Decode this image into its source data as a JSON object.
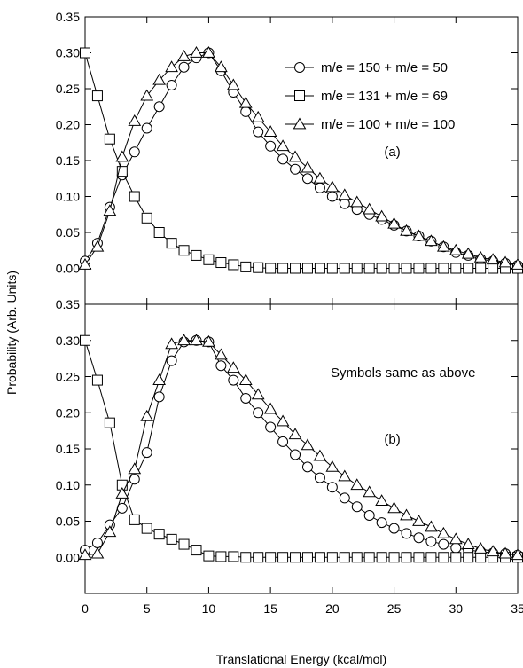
{
  "figure": {
    "ylabel": "Probability (Arb. Units)",
    "xlabel": "Translational Energy (kcal/mol)"
  },
  "chart_data": [
    {
      "type": "line",
      "panel_label": "(a)",
      "xlim": [
        0,
        35
      ],
      "ylim": [
        -0.05,
        0.35
      ],
      "x_ticks": [
        "0",
        "5",
        "10",
        "15",
        "20",
        "25",
        "30",
        "35"
      ],
      "y_ticks": [
        "0.00",
        "0.05",
        "0.10",
        "0.15",
        "0.20",
        "0.25",
        "0.30",
        "0.35"
      ],
      "x": [
        0,
        1,
        2,
        3,
        4,
        5,
        6,
        7,
        8,
        9,
        10,
        11,
        12,
        13,
        14,
        15,
        16,
        17,
        18,
        19,
        20,
        21,
        22,
        23,
        24,
        25,
        26,
        27,
        28,
        29,
        30,
        31,
        32,
        33,
        34,
        35
      ],
      "series": [
        {
          "name": "m/e = 150 + m/e = 50",
          "marker": "circle",
          "values": [
            0.01,
            0.035,
            0.085,
            0.13,
            0.162,
            0.195,
            0.225,
            0.255,
            0.28,
            0.293,
            0.3,
            0.275,
            0.245,
            0.218,
            0.19,
            0.17,
            0.152,
            0.138,
            0.125,
            0.112,
            0.1,
            0.09,
            0.082,
            0.075,
            0.068,
            0.06,
            0.052,
            0.045,
            0.038,
            0.03,
            0.022,
            0.018,
            0.013,
            0.01,
            0.007,
            0.004
          ]
        },
        {
          "name": "m/e = 131 + m/e = 69",
          "marker": "square",
          "values": [
            0.3,
            0.24,
            0.18,
            0.135,
            0.1,
            0.07,
            0.05,
            0.035,
            0.025,
            0.018,
            0.012,
            0.008,
            0.005,
            0.002,
            0.001,
            0.0,
            0.0,
            0.0,
            0.0,
            0.0,
            0.0,
            0.0,
            0.0,
            0.0,
            0.0,
            0.0,
            0.0,
            0.0,
            0.0,
            0.0,
            0.0,
            0.0,
            0.0,
            0.0,
            0.0,
            0.0
          ]
        },
        {
          "name": "m/e = 100 + m/e = 100",
          "marker": "triangle",
          "values": [
            0.005,
            0.03,
            0.08,
            0.155,
            0.205,
            0.24,
            0.262,
            0.28,
            0.295,
            0.3,
            0.3,
            0.28,
            0.255,
            0.23,
            0.21,
            0.19,
            0.17,
            0.155,
            0.14,
            0.125,
            0.113,
            0.102,
            0.092,
            0.082,
            0.072,
            0.062,
            0.052,
            0.045,
            0.038,
            0.03,
            0.025,
            0.02,
            0.015,
            0.012,
            0.008,
            0.005
          ]
        }
      ]
    },
    {
      "type": "line",
      "panel_label": "(b)",
      "annotation": "Symbols same as above",
      "xlim": [
        0,
        35
      ],
      "ylim": [
        -0.05,
        0.35
      ],
      "x_ticks": [
        "0",
        "5",
        "10",
        "15",
        "20",
        "25",
        "30",
        "35"
      ],
      "y_ticks": [
        "0.00",
        "0.05",
        "0.10",
        "0.15",
        "0.20",
        "0.25",
        "0.30",
        "0.35"
      ],
      "x": [
        0,
        1,
        2,
        3,
        4,
        5,
        6,
        7,
        8,
        9,
        10,
        11,
        12,
        13,
        14,
        15,
        16,
        17,
        18,
        19,
        20,
        21,
        22,
        23,
        24,
        25,
        26,
        27,
        28,
        29,
        30,
        31,
        32,
        33,
        34,
        35
      ],
      "series": [
        {
          "name": "m/e = 150 + m/e = 50",
          "marker": "circle",
          "values": [
            0.01,
            0.02,
            0.045,
            0.068,
            0.108,
            0.145,
            0.222,
            0.272,
            0.298,
            0.3,
            0.298,
            0.265,
            0.245,
            0.22,
            0.2,
            0.18,
            0.16,
            0.142,
            0.125,
            0.11,
            0.097,
            0.082,
            0.07,
            0.058,
            0.048,
            0.04,
            0.033,
            0.027,
            0.022,
            0.018,
            0.013,
            0.01,
            0.008,
            0.006,
            0.005,
            0.003
          ]
        },
        {
          "name": "m/e = 131 + m/e = 69",
          "marker": "square",
          "values": [
            0.3,
            0.245,
            0.186,
            0.1,
            0.052,
            0.04,
            0.032,
            0.025,
            0.018,
            0.01,
            0.002,
            0.001,
            0.001,
            0.0,
            0.0,
            0.0,
            0.0,
            0.0,
            0.0,
            0.0,
            0.0,
            0.0,
            0.0,
            0.0,
            0.0,
            0.0,
            0.0,
            0.0,
            0.0,
            0.0,
            0.0,
            0.0,
            0.0,
            0.0,
            0.0,
            0.0
          ]
        },
        {
          "name": "m/e = 100 + m/e = 100",
          "marker": "triangle",
          "values": [
            0.003,
            0.005,
            0.035,
            0.088,
            0.122,
            0.195,
            0.245,
            0.295,
            0.3,
            0.3,
            0.298,
            0.28,
            0.262,
            0.245,
            0.225,
            0.205,
            0.188,
            0.17,
            0.155,
            0.14,
            0.125,
            0.112,
            0.1,
            0.09,
            0.078,
            0.068,
            0.058,
            0.05,
            0.042,
            0.033,
            0.025,
            0.018,
            0.012,
            0.008,
            0.005,
            0.003
          ]
        }
      ]
    }
  ]
}
